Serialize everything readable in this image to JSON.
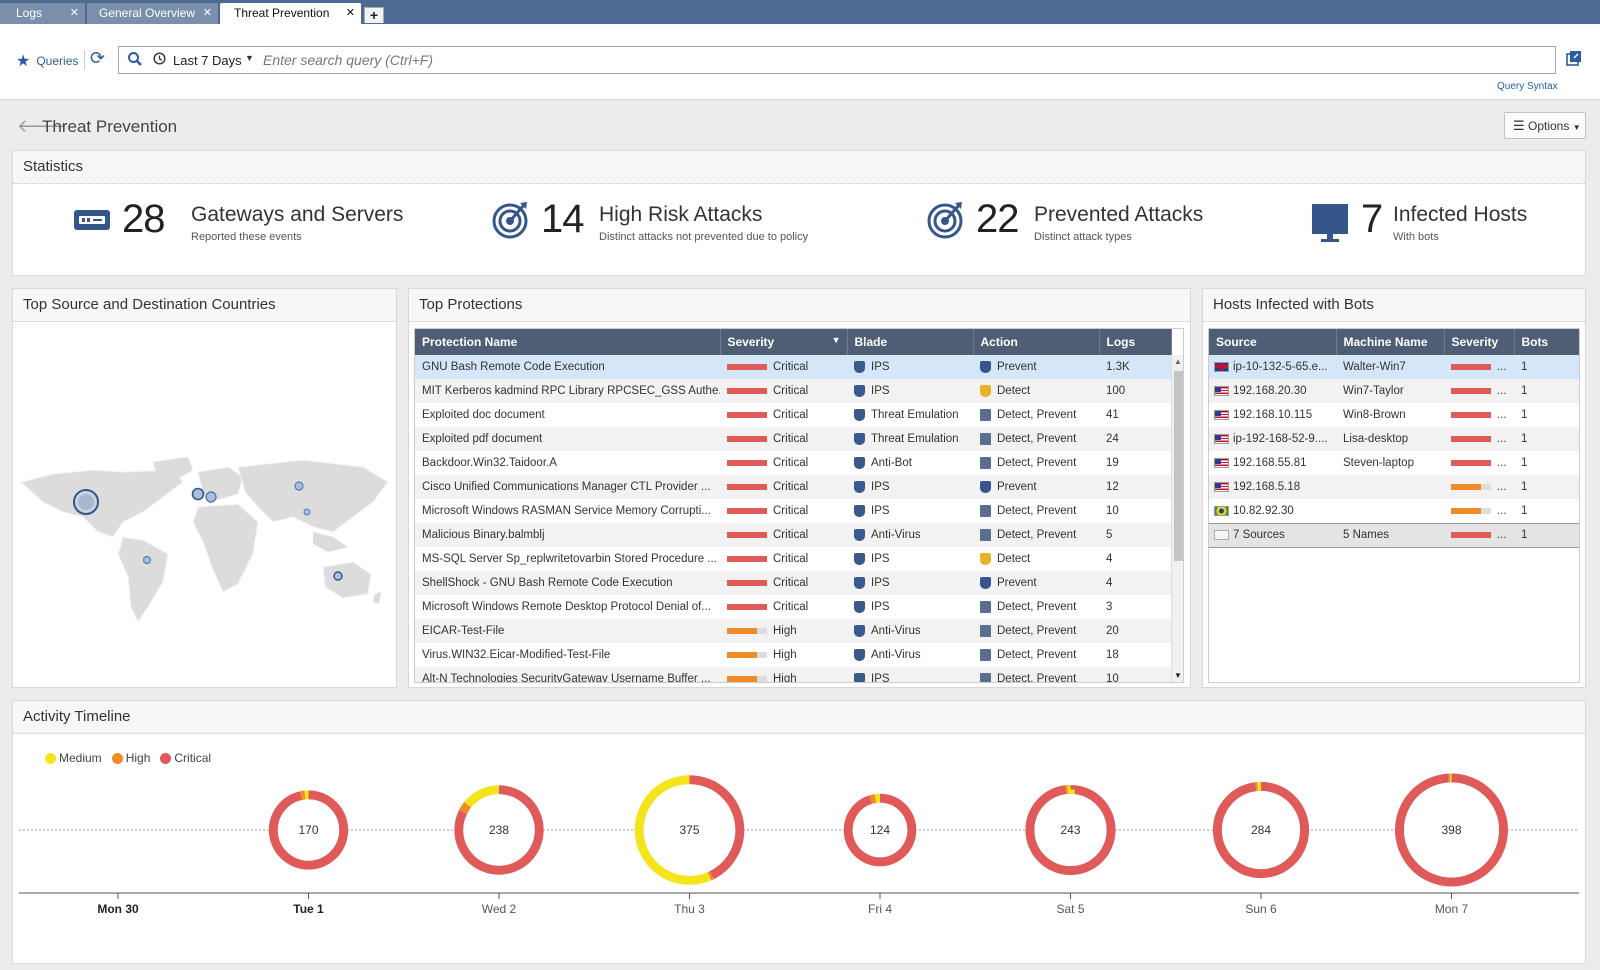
{
  "tabs": [
    {
      "label": "Logs",
      "active": false
    },
    {
      "label": "General Overview",
      "active": false
    },
    {
      "label": "Threat Prevention",
      "active": true
    }
  ],
  "toolbar": {
    "queries_label": "Queries",
    "time_range": "Last 7 Days",
    "search_placeholder": "Enter search query (Ctrl+F)",
    "query_syntax_link": "Query Syntax"
  },
  "page": {
    "title": "Threat Prevention",
    "options_label": "Options"
  },
  "statistics": {
    "title": "Statistics",
    "items": [
      {
        "value": "28",
        "label": "Gateways and Servers",
        "sub": "Reported these events",
        "icon": "gateway-icon"
      },
      {
        "value": "14",
        "label": "High Risk Attacks",
        "sub": "Distinct attacks not prevented due to policy",
        "icon": "target-icon"
      },
      {
        "value": "22",
        "label": "Prevented Attacks",
        "sub": "Distinct attack types",
        "icon": "target-icon"
      },
      {
        "value": "7",
        "label": "Infected Hosts",
        "sub": "With bots",
        "icon": "monitor-icon"
      }
    ]
  },
  "countries": {
    "title": "Top Source and Destination Countries"
  },
  "protections": {
    "title": "Top Protections",
    "columns": [
      "Protection Name",
      "Severity",
      "Blade",
      "Action",
      "Logs"
    ],
    "rows": [
      {
        "name": "GNU Bash Remote Code Execution",
        "severity": "Critical",
        "level": 1.0,
        "blade": "IPS",
        "action": "Prevent",
        "logs": "1.3K"
      },
      {
        "name": "MIT Kerberos kadmind RPC Library RPCSEC_GSS Authe...",
        "severity": "Critical",
        "level": 1.0,
        "blade": "IPS",
        "action": "Detect",
        "logs": "100"
      },
      {
        "name": "Exploited doc document",
        "severity": "Critical",
        "level": 1.0,
        "blade": "Threat Emulation",
        "action": "Detect, Prevent",
        "logs": "41"
      },
      {
        "name": "Exploited pdf document",
        "severity": "Critical",
        "level": 1.0,
        "blade": "Threat Emulation",
        "action": "Detect, Prevent",
        "logs": "24"
      },
      {
        "name": "Backdoor.Win32.Taidoor.A",
        "severity": "Critical",
        "level": 1.0,
        "blade": "Anti-Bot",
        "action": "Detect, Prevent",
        "logs": "19"
      },
      {
        "name": "Cisco Unified Communications Manager CTL Provider ...",
        "severity": "Critical",
        "level": 1.0,
        "blade": "IPS",
        "action": "Prevent",
        "logs": "12"
      },
      {
        "name": "Microsoft Windows RASMAN Service Memory Corrupti...",
        "severity": "Critical",
        "level": 1.0,
        "blade": "IPS",
        "action": "Detect, Prevent",
        "logs": "10"
      },
      {
        "name": "Malicious Binary.balmblj",
        "severity": "Critical",
        "level": 1.0,
        "blade": "Anti-Virus",
        "action": "Detect, Prevent",
        "logs": "5"
      },
      {
        "name": "MS-SQL Server Sp_replwritetovarbin Stored Procedure ...",
        "severity": "Critical",
        "level": 1.0,
        "blade": "IPS",
        "action": "Detect",
        "logs": "4"
      },
      {
        "name": "ShellShock - GNU Bash Remote Code Execution",
        "severity": "Critical",
        "level": 1.0,
        "blade": "IPS",
        "action": "Prevent",
        "logs": "4"
      },
      {
        "name": "Microsoft Windows Remote Desktop Protocol Denial of...",
        "severity": "Critical",
        "level": 1.0,
        "blade": "IPS",
        "action": "Detect, Prevent",
        "logs": "3"
      },
      {
        "name": "EICAR-Test-File",
        "severity": "High",
        "level": 0.75,
        "blade": "Anti-Virus",
        "action": "Detect, Prevent",
        "logs": "20"
      },
      {
        "name": "Virus.WIN32.Eicar-Modified-Test-File",
        "severity": "High",
        "level": 0.75,
        "blade": "Anti-Virus",
        "action": "Detect, Prevent",
        "logs": "18"
      },
      {
        "name": "Alt-N Technologies SecurityGateway Username Buffer ...",
        "severity": "High",
        "level": 0.75,
        "blade": "IPS",
        "action": "Detect, Prevent",
        "logs": "10"
      }
    ]
  },
  "hosts": {
    "title": "Hosts Infected with Bots",
    "columns": [
      "Source",
      "Machine Name",
      "Severity",
      "Bots"
    ],
    "rows": [
      {
        "source": "ip-10-132-5-65.e...",
        "flag": "uk",
        "machine": "Walter-Win7",
        "severity": "...",
        "level": 1.0,
        "bots": "1"
      },
      {
        "source": "192.168.20.30",
        "flag": "us",
        "machine": "Win7-Taylor",
        "severity": "...",
        "level": 1.0,
        "bots": "1"
      },
      {
        "source": "192.168.10.115",
        "flag": "us",
        "machine": "Win8-Brown",
        "severity": "...",
        "level": 1.0,
        "bots": "1"
      },
      {
        "source": "ip-192-168-52-9....",
        "flag": "us",
        "machine": "Lisa-desktop",
        "severity": "...",
        "level": 1.0,
        "bots": "1"
      },
      {
        "source": "192.168.55.81",
        "flag": "us",
        "machine": "Steven-laptop",
        "severity": "...",
        "level": 1.0,
        "bots": "1"
      },
      {
        "source": "192.168.5.18",
        "flag": "us",
        "machine": "",
        "severity": "...",
        "level": 0.75,
        "bots": "1"
      },
      {
        "source": "10.82.92.30",
        "flag": "br",
        "machine": "",
        "severity": "...",
        "level": 0.75,
        "bots": "1"
      }
    ],
    "summary": {
      "source": "7 Sources",
      "machine": "5 Names",
      "severity": "...",
      "level": 1.0,
      "bots": "1"
    }
  },
  "timeline": {
    "title": "Activity Timeline",
    "legend": [
      {
        "label": "Medium",
        "color": "#f4e41c"
      },
      {
        "label": "High",
        "color": "#f08c28"
      },
      {
        "label": "Critical",
        "color": "#e05a5a"
      }
    ]
  },
  "chart_data": {
    "type": "donut-timeline",
    "categories": [
      "Mon 30",
      "Tue 1",
      "Wed 2",
      "Thu 3",
      "Fri 4",
      "Sat 5",
      "Sun 6",
      "Mon 7"
    ],
    "totals": [
      null,
      170,
      238,
      375,
      124,
      243,
      284,
      398
    ],
    "series": [
      {
        "name": "Critical",
        "values": [
          null,
          164,
          196,
          160,
          118,
          238,
          278,
          394
        ]
      },
      {
        "name": "High",
        "values": [
          null,
          3,
          8,
          3,
          3,
          2,
          2,
          2
        ]
      },
      {
        "name": "Medium",
        "values": [
          null,
          3,
          34,
          212,
          3,
          3,
          4,
          2
        ]
      }
    ]
  }
}
